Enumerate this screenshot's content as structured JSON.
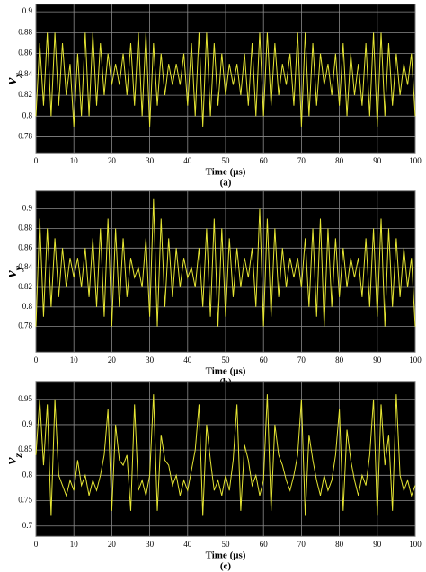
{
  "chart_data": [
    {
      "type": "line",
      "x_label": "Time (μs)",
      "caption": "(a)",
      "y_label": "v",
      "y_label_subscript": "x",
      "x": [
        0,
        1,
        2,
        3,
        4,
        5,
        6,
        7,
        8,
        9,
        10,
        11,
        12,
        13,
        14,
        15,
        16,
        17,
        18,
        19,
        20,
        21,
        22,
        23,
        24,
        25,
        26,
        27,
        28,
        29,
        30,
        31,
        32,
        33,
        34,
        35,
        36,
        37,
        38,
        39,
        40,
        41,
        42,
        43,
        44,
        45,
        46,
        47,
        48,
        49,
        50,
        51,
        52,
        53,
        54,
        55,
        56,
        57,
        58,
        59,
        60,
        61,
        62,
        63,
        64,
        65,
        66,
        67,
        68,
        69,
        70,
        71,
        72,
        73,
        74,
        75,
        76,
        77,
        78,
        79,
        80,
        81,
        82,
        83,
        84,
        85,
        86,
        87,
        88,
        89,
        90,
        91,
        92,
        93,
        94,
        95,
        96,
        97,
        98,
        99,
        100
      ],
      "values": [
        0.8,
        0.87,
        0.81,
        0.88,
        0.8,
        0.88,
        0.81,
        0.87,
        0.82,
        0.85,
        0.79,
        0.86,
        0.8,
        0.88,
        0.8,
        0.88,
        0.81,
        0.87,
        0.82,
        0.86,
        0.83,
        0.85,
        0.83,
        0.86,
        0.82,
        0.87,
        0.81,
        0.88,
        0.8,
        0.88,
        0.79,
        0.87,
        0.81,
        0.86,
        0.82,
        0.85,
        0.83,
        0.85,
        0.83,
        0.86,
        0.81,
        0.87,
        0.8,
        0.88,
        0.79,
        0.88,
        0.8,
        0.87,
        0.81,
        0.86,
        0.82,
        0.85,
        0.83,
        0.85,
        0.82,
        0.86,
        0.81,
        0.87,
        0.8,
        0.88,
        0.8,
        0.88,
        0.81,
        0.87,
        0.82,
        0.85,
        0.83,
        0.86,
        0.81,
        0.88,
        0.79,
        0.88,
        0.8,
        0.87,
        0.81,
        0.86,
        0.83,
        0.85,
        0.82,
        0.86,
        0.81,
        0.87,
        0.8,
        0.86,
        0.82,
        0.85,
        0.81,
        0.87,
        0.8,
        0.88,
        0.79,
        0.88,
        0.8,
        0.87,
        0.81,
        0.86,
        0.82,
        0.85,
        0.83,
        0.86,
        0.8
      ],
      "color": "#e6e633",
      "xlim": [
        0,
        100
      ],
      "xticks": [
        0,
        10,
        20,
        30,
        40,
        50,
        60,
        70,
        80,
        90,
        100
      ],
      "ylim": [
        0.765,
        0.907
      ],
      "yticks": [
        0.78,
        0.8,
        0.82,
        0.84,
        0.86,
        0.88,
        0.9
      ],
      "grid": true
    },
    {
      "type": "line",
      "x_label": "Time (μs)",
      "caption": "(b)",
      "y_label": "v",
      "y_label_subscript": "y",
      "x": [
        0,
        1,
        2,
        3,
        4,
        5,
        6,
        7,
        8,
        9,
        10,
        11,
        12,
        13,
        14,
        15,
        16,
        17,
        18,
        19,
        20,
        21,
        22,
        23,
        24,
        25,
        26,
        27,
        28,
        29,
        30,
        31,
        32,
        33,
        34,
        35,
        36,
        37,
        38,
        39,
        40,
        41,
        42,
        43,
        44,
        45,
        46,
        47,
        48,
        49,
        50,
        51,
        52,
        53,
        54,
        55,
        56,
        57,
        58,
        59,
        60,
        61,
        62,
        63,
        64,
        65,
        66,
        67,
        68,
        69,
        70,
        71,
        72,
        73,
        74,
        75,
        76,
        77,
        78,
        79,
        80,
        81,
        82,
        83,
        84,
        85,
        86,
        87,
        88,
        89,
        90,
        91,
        92,
        93,
        94,
        95,
        96,
        97,
        98,
        99,
        100
      ],
      "values": [
        0.78,
        0.89,
        0.79,
        0.88,
        0.8,
        0.87,
        0.81,
        0.86,
        0.82,
        0.85,
        0.83,
        0.85,
        0.82,
        0.86,
        0.81,
        0.87,
        0.8,
        0.88,
        0.79,
        0.89,
        0.78,
        0.88,
        0.8,
        0.87,
        0.81,
        0.85,
        0.83,
        0.84,
        0.82,
        0.87,
        0.79,
        0.91,
        0.78,
        0.89,
        0.8,
        0.87,
        0.81,
        0.86,
        0.82,
        0.85,
        0.83,
        0.84,
        0.82,
        0.86,
        0.8,
        0.88,
        0.79,
        0.89,
        0.78,
        0.88,
        0.79,
        0.87,
        0.81,
        0.86,
        0.82,
        0.85,
        0.83,
        0.86,
        0.8,
        0.9,
        0.78,
        0.89,
        0.79,
        0.88,
        0.81,
        0.86,
        0.82,
        0.85,
        0.83,
        0.85,
        0.82,
        0.87,
        0.8,
        0.88,
        0.79,
        0.89,
        0.78,
        0.88,
        0.8,
        0.87,
        0.81,
        0.86,
        0.82,
        0.85,
        0.83,
        0.85,
        0.81,
        0.87,
        0.8,
        0.88,
        0.79,
        0.89,
        0.78,
        0.88,
        0.8,
        0.87,
        0.81,
        0.86,
        0.82,
        0.85,
        0.78
      ],
      "color": "#e6e633",
      "xlim": [
        0,
        100
      ],
      "xticks": [
        0,
        10,
        20,
        30,
        40,
        50,
        60,
        70,
        80,
        90,
        100
      ],
      "ylim": [
        0.754,
        0.918
      ],
      "yticks": [
        0.78,
        0.8,
        0.82,
        0.84,
        0.86,
        0.88,
        0.9
      ],
      "grid": true
    },
    {
      "type": "line",
      "x_label": "Time (μs)",
      "caption": "(c)",
      "y_label": "v",
      "y_label_subscript": "z",
      "x": [
        0,
        1,
        2,
        3,
        4,
        5,
        6,
        7,
        8,
        9,
        10,
        11,
        12,
        13,
        14,
        15,
        16,
        17,
        18,
        19,
        20,
        21,
        22,
        23,
        24,
        25,
        26,
        27,
        28,
        29,
        30,
        31,
        32,
        33,
        34,
        35,
        36,
        37,
        38,
        39,
        40,
        41,
        42,
        43,
        44,
        45,
        46,
        47,
        48,
        49,
        50,
        51,
        52,
        53,
        54,
        55,
        56,
        57,
        58,
        59,
        60,
        61,
        62,
        63,
        64,
        65,
        66,
        67,
        68,
        69,
        70,
        71,
        72,
        73,
        74,
        75,
        76,
        77,
        78,
        79,
        80,
        81,
        82,
        83,
        84,
        85,
        86,
        87,
        88,
        89,
        90,
        91,
        92,
        93,
        94,
        95,
        96,
        97,
        98,
        99,
        100
      ],
      "values": [
        0.84,
        0.95,
        0.82,
        0.94,
        0.72,
        0.95,
        0.8,
        0.78,
        0.76,
        0.79,
        0.77,
        0.83,
        0.78,
        0.8,
        0.76,
        0.79,
        0.77,
        0.8,
        0.84,
        0.93,
        0.73,
        0.9,
        0.83,
        0.82,
        0.84,
        0.73,
        0.94,
        0.77,
        0.79,
        0.76,
        0.8,
        0.96,
        0.73,
        0.88,
        0.83,
        0.82,
        0.78,
        0.8,
        0.76,
        0.79,
        0.77,
        0.81,
        0.85,
        0.94,
        0.72,
        0.9,
        0.83,
        0.77,
        0.79,
        0.76,
        0.8,
        0.77,
        0.83,
        0.94,
        0.73,
        0.86,
        0.83,
        0.78,
        0.8,
        0.76,
        0.79,
        0.96,
        0.73,
        0.9,
        0.84,
        0.82,
        0.79,
        0.77,
        0.8,
        0.84,
        0.95,
        0.72,
        0.88,
        0.83,
        0.79,
        0.76,
        0.8,
        0.77,
        0.79,
        0.84,
        0.93,
        0.73,
        0.89,
        0.83,
        0.79,
        0.76,
        0.8,
        0.78,
        0.84,
        0.95,
        0.72,
        0.94,
        0.82,
        0.88,
        0.73,
        0.96,
        0.8,
        0.77,
        0.79,
        0.76,
        0.78
      ],
      "color": "#e6e633",
      "xlim": [
        0,
        100
      ],
      "xticks": [
        0,
        10,
        20,
        30,
        40,
        50,
        60,
        70,
        80,
        90,
        100
      ],
      "ylim": [
        0.68,
        0.985
      ],
      "yticks": [
        0.7,
        0.75,
        0.8,
        0.85,
        0.9,
        0.95
      ],
      "grid": true
    }
  ]
}
